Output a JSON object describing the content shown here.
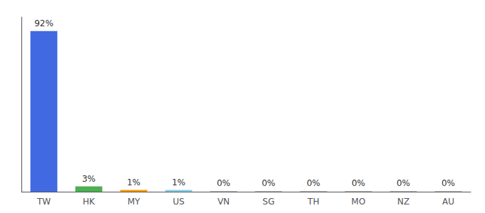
{
  "chart_data": {
    "type": "bar",
    "categories": [
      "TW",
      "HK",
      "MY",
      "US",
      "VN",
      "SG",
      "TH",
      "MO",
      "NZ",
      "AU"
    ],
    "values": [
      92,
      3,
      1,
      1,
      0.3,
      0.3,
      0.3,
      0.3,
      0.3,
      0.3
    ],
    "value_labels": [
      "92%",
      "3%",
      "1%",
      "1%",
      "0%",
      "0%",
      "0%",
      "0%",
      "0%",
      "0%"
    ],
    "colors": [
      "#4169e1",
      "#4caf50",
      "#ff9800",
      "#87ceeb",
      "#9e9e9e",
      "#9e9e9e",
      "#9e9e9e",
      "#9e9e9e",
      "#9e9e9e",
      "#9e9e9e"
    ],
    "ylim": [
      0,
      100
    ],
    "data_labels": true,
    "tick_labels": "x",
    "grid": false
  }
}
